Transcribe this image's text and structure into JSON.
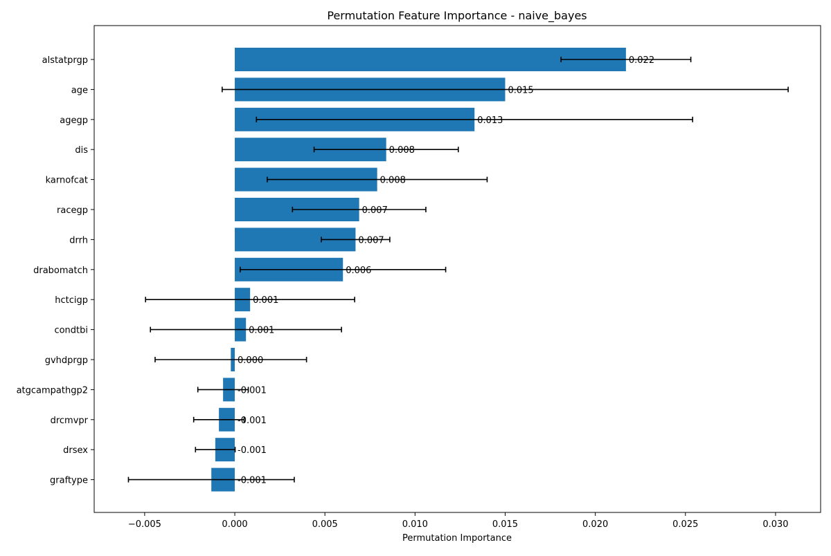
{
  "chart_data": {
    "type": "bar",
    "orientation": "horizontal",
    "title": "Permutation Feature Importance - naive_bayes",
    "xlabel": "Permutation Importance",
    "ylabel": "",
    "xlim": [
      -0.0078,
      0.0325
    ],
    "xticks": [
      -0.005,
      0.0,
      0.005,
      0.01,
      0.015,
      0.02,
      0.025,
      0.03
    ],
    "xtick_labels": [
      "−0.005",
      "0.000",
      "0.005",
      "0.010",
      "0.015",
      "0.020",
      "0.025",
      "0.030"
    ],
    "grid": false,
    "bar_color": "#1f77b4",
    "errorbar_color": "#000000",
    "categories": [
      "alstatprgp",
      "age",
      "agegp",
      "dis",
      "karnofcat",
      "racegp",
      "drrh",
      "drabomatch",
      "hctcigp",
      "condtbi",
      "gvhdprgp",
      "atgcampathgp2",
      "drcmvpr",
      "drsex",
      "graftype"
    ],
    "values": [
      0.0217,
      0.015,
      0.0133,
      0.0084,
      0.0079,
      0.0069,
      0.0067,
      0.006,
      0.00085,
      0.00062,
      -0.00022,
      -0.00065,
      -0.00088,
      -0.00108,
      -0.0013
    ],
    "errors": [
      0.0036,
      0.0157,
      0.0121,
      0.004,
      0.0061,
      0.0037,
      0.0019,
      0.0057,
      0.0058,
      0.0053,
      0.0042,
      0.0014,
      0.0014,
      0.0011,
      0.0046
    ],
    "value_labels": [
      "0.022",
      "0.015",
      "0.013",
      "0.008",
      "0.008",
      "0.007",
      "0.007",
      "0.006",
      "0.001",
      "0.001",
      "0.000",
      "-0.001",
      "-0.001",
      "-0.001",
      "-0.001"
    ]
  }
}
